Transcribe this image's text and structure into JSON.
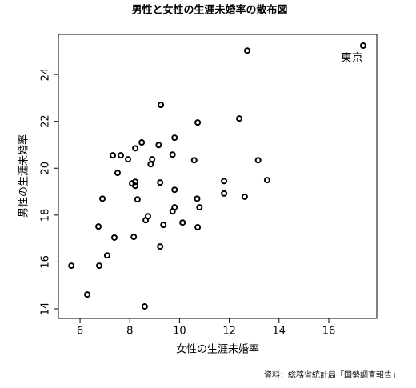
{
  "chart_data": {
    "type": "scatter",
    "title": "男性と女性の生涯未婚率の散布図",
    "x_label": "女性の生涯未婚率",
    "y_label": "男性の生涯未婚率",
    "source": "資料：総務省統計局「国勢調査報告」",
    "x": [
      17.38,
      12.72,
      9.25,
      10.73,
      12.4,
      8.48,
      9.8,
      9.16,
      8.22,
      7.32,
      7.64,
      7.93,
      8.9,
      8.84,
      9.72,
      10.59,
      13.16,
      7.51,
      8.09,
      8.22,
      8.22,
      9.22,
      9.8,
      11.79,
      13.52,
      11.79,
      12.62,
      10.71,
      6.9,
      8.31,
      9.8,
      10.8,
      9.72,
      8.73,
      8.64,
      10.12,
      9.35,
      6.74,
      10.73,
      8.16,
      7.38,
      9.22,
      7.09,
      6.77,
      5.65,
      6.29,
      8.6
    ],
    "y": [
      25.23,
      25.02,
      22.7,
      21.95,
      22.12,
      21.1,
      21.3,
      20.99,
      20.85,
      20.55,
      20.55,
      20.38,
      20.38,
      20.17,
      20.58,
      20.34,
      20.34,
      19.8,
      19.35,
      19.42,
      19.25,
      19.39,
      19.08,
      19.45,
      19.49,
      18.92,
      18.78,
      18.7,
      18.7,
      18.67,
      18.33,
      18.33,
      18.16,
      17.95,
      17.78,
      17.68,
      17.58,
      17.51,
      17.48,
      17.07,
      17.04,
      16.66,
      16.28,
      15.84,
      15.84,
      14.61,
      14.1
    ],
    "annotations": [
      {
        "text": "東京",
        "x": 17.38,
        "y": 25.23
      }
    ],
    "color": "#000000",
    "xlim": [
      5.13,
      17.93
    ],
    "ylim": [
      13.59,
      25.71
    ],
    "xticks": [
      6,
      8,
      10,
      12,
      14,
      16
    ],
    "yticks": [
      14,
      16,
      18,
      20,
      22,
      24
    ],
    "grid": false
  }
}
